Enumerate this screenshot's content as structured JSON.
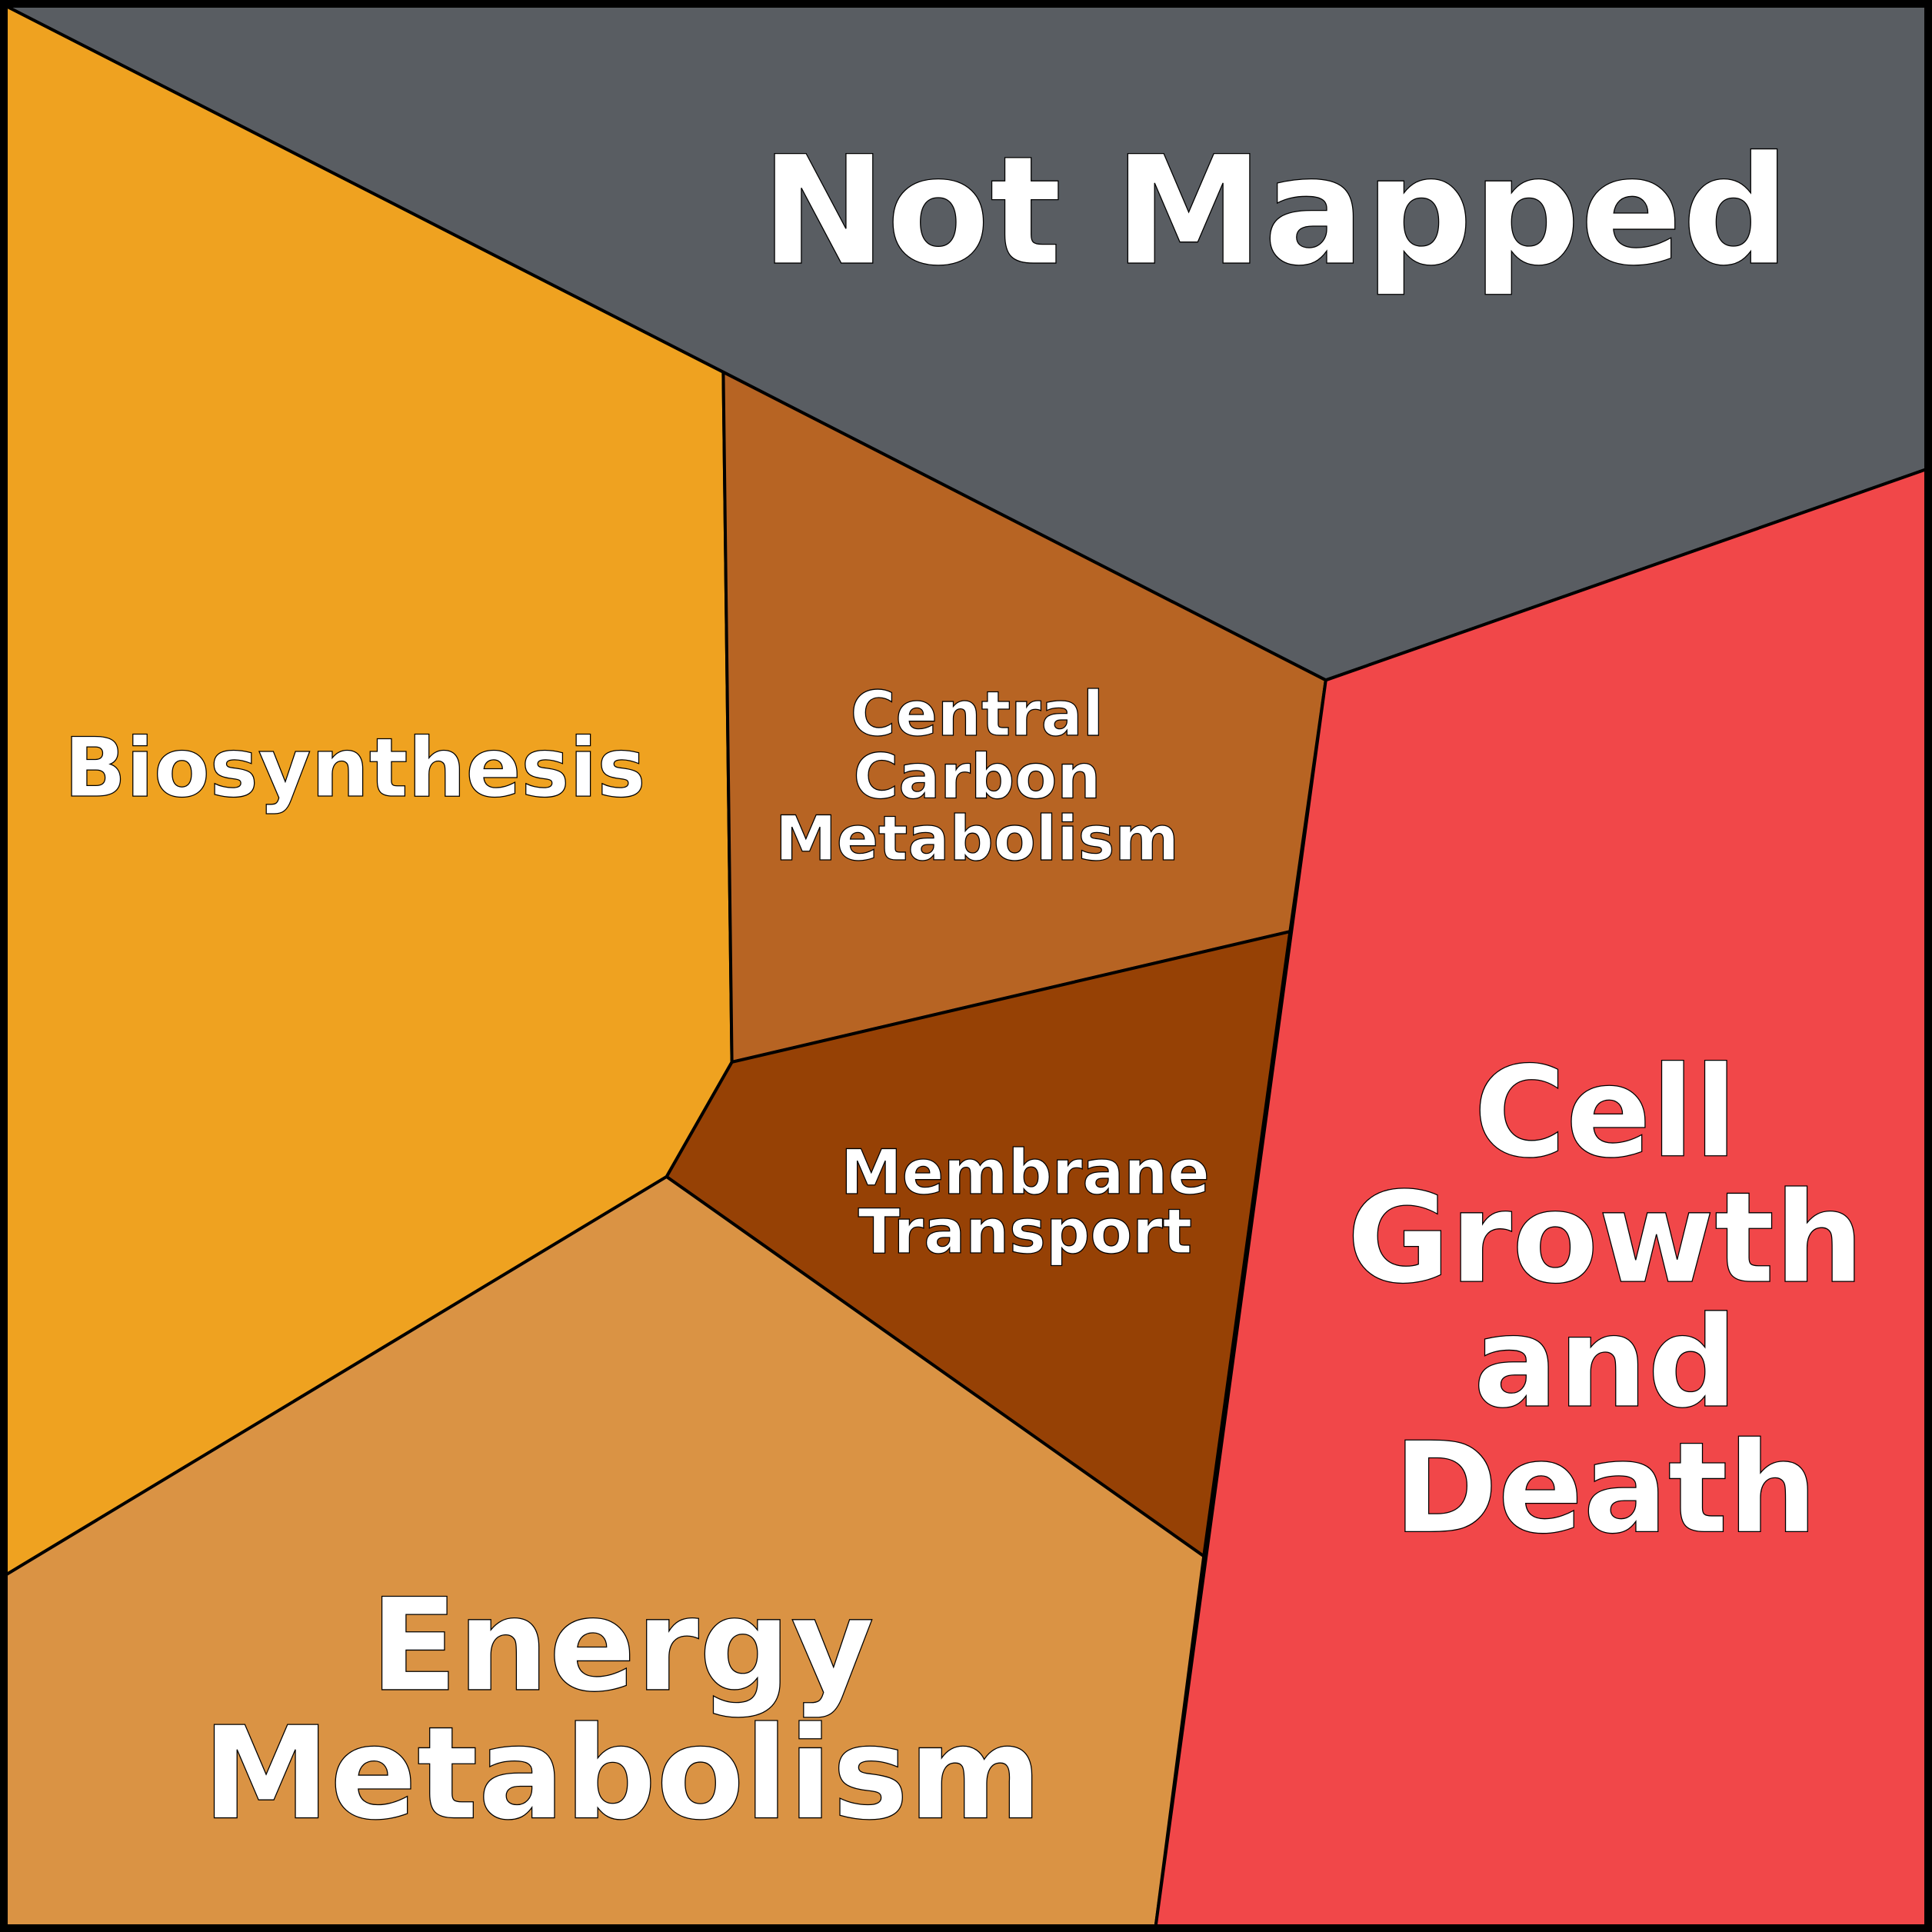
{
  "nodes": [
    {
      "label": [
        "Not Mapped"
      ]
    },
    {
      "label": [
        "Biosynthesis"
      ]
    },
    {
      "label": [
        "Central",
        "Carbon",
        "Metabolism"
      ]
    },
    {
      "label": [
        "Membrane",
        "Transport"
      ]
    },
    {
      "label": [
        "Energy",
        "Metabolism"
      ]
    },
    {
      "label": [
        "Cell",
        "Growth",
        "and",
        "Death"
      ]
    }
  ]
}
